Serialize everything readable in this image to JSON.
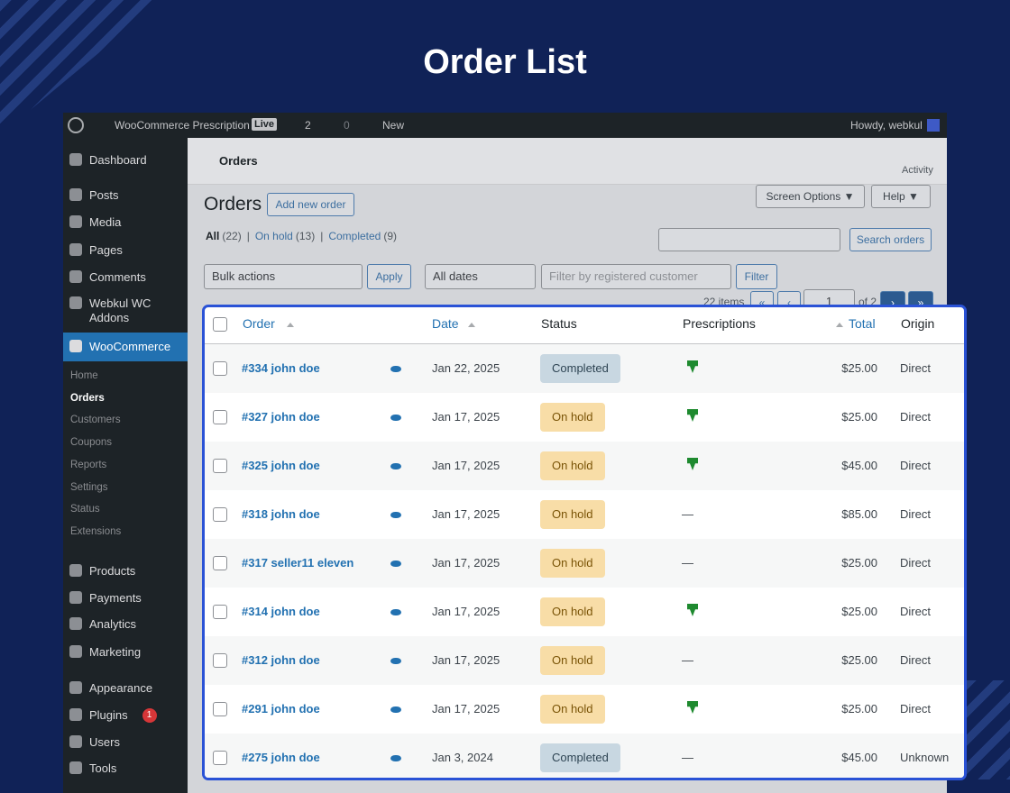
{
  "title": "Order List",
  "admin_bar": {
    "site": "WooCommerce Prescription",
    "badge": "Live",
    "updates": "2",
    "comments": "0",
    "new": "New",
    "greeting": "Howdy, webkul"
  },
  "menu": [
    {
      "label": "Dashboard"
    },
    {
      "label": "Posts"
    },
    {
      "label": "Media"
    },
    {
      "label": "Pages"
    },
    {
      "label": "Comments"
    },
    {
      "label": "Webkul WC Addons"
    },
    {
      "label": "WooCommerce",
      "current": true,
      "submenu": [
        {
          "label": "Home"
        },
        {
          "label": "Orders",
          "current": true
        },
        {
          "label": "Customers"
        },
        {
          "label": "Coupons"
        },
        {
          "label": "Reports"
        },
        {
          "label": "Settings"
        },
        {
          "label": "Status"
        },
        {
          "label": "Extensions"
        }
      ]
    },
    {
      "label": "Products"
    },
    {
      "label": "Payments"
    },
    {
      "label": "Analytics"
    },
    {
      "label": "Marketing"
    },
    {
      "label": "Appearance"
    },
    {
      "label": "Plugins",
      "badge": "1"
    },
    {
      "label": "Users"
    },
    {
      "label": "Tools"
    }
  ],
  "header": {
    "page": "Orders",
    "activity": "Activity"
  },
  "toolbar": {
    "heading": "Orders",
    "add_new": "Add new order",
    "screen_options": "Screen Options ▼",
    "help": "Help ▼",
    "views": [
      {
        "label": "All",
        "count": "(22)",
        "current": true
      },
      {
        "label": "On hold",
        "count": "(13)"
      },
      {
        "label": "Completed",
        "count": "(9)"
      }
    ],
    "search_button": "Search orders",
    "bulk_actions": "Bulk actions",
    "apply": "Apply",
    "dates": "All dates",
    "customer_filter": "Filter by registered customer",
    "filter": "Filter",
    "pagination": {
      "items": "22 items",
      "first": "«",
      "prev": "‹",
      "page": "1",
      "of": "of 2",
      "next": "›",
      "last": "»"
    }
  },
  "table": {
    "columns": [
      "Order",
      "Date",
      "Status",
      "Prescriptions",
      "Total",
      "Origin"
    ],
    "empty_cell": "—",
    "rows": [
      {
        "order": "#334 john doe",
        "date": "Jan 22, 2025",
        "status": "Completed",
        "prescription": true,
        "total": "$25.00",
        "origin": "Direct"
      },
      {
        "order": "#327 john doe",
        "date": "Jan 17, 2025",
        "status": "On hold",
        "prescription": true,
        "total": "$25.00",
        "origin": "Direct"
      },
      {
        "order": "#325 john doe",
        "date": "Jan 17, 2025",
        "status": "On hold",
        "prescription": true,
        "total": "$45.00",
        "origin": "Direct"
      },
      {
        "order": "#318 john doe",
        "date": "Jan 17, 2025",
        "status": "On hold",
        "prescription": false,
        "total": "$85.00",
        "origin": "Direct"
      },
      {
        "order": "#317 seller11 eleven",
        "date": "Jan 17, 2025",
        "status": "On hold",
        "prescription": false,
        "total": "$25.00",
        "origin": "Direct"
      },
      {
        "order": "#314 john doe",
        "date": "Jan 17, 2025",
        "status": "On hold",
        "prescription": true,
        "total": "$25.00",
        "origin": "Direct"
      },
      {
        "order": "#312 john doe",
        "date": "Jan 17, 2025",
        "status": "On hold",
        "prescription": false,
        "total": "$25.00",
        "origin": "Direct"
      },
      {
        "order": "#291 john doe",
        "date": "Jan 17, 2025",
        "status": "On hold",
        "prescription": true,
        "total": "$25.00",
        "origin": "Direct"
      },
      {
        "order": "#275 john doe",
        "date": "Jan 3, 2024",
        "status": "Completed",
        "prescription": false,
        "total": "$45.00",
        "origin": "Unknown"
      }
    ]
  }
}
